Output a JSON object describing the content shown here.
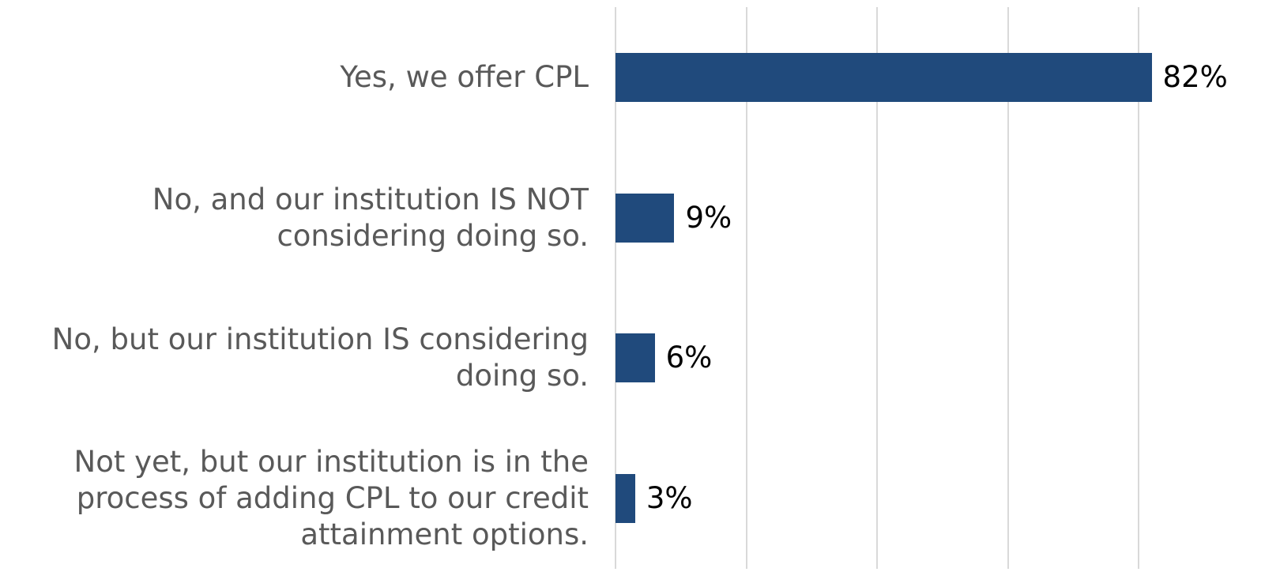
{
  "chart_data": {
    "type": "hbar",
    "categories": [
      "Yes, we offer CPL",
      "No, and our institution IS NOT considering doing so.",
      "No, but our institution IS considering doing so.",
      "Not yet, but our institution is in the process of adding CPL to our credit attainment options."
    ],
    "values": [
      82,
      9,
      6,
      3
    ],
    "value_labels": [
      "82%",
      "9%",
      "6%",
      "3%"
    ],
    "color": "#204a7c",
    "xlim": [
      0,
      80
    ],
    "xticks": [
      0,
      20,
      40,
      60,
      80
    ],
    "grid": true
  }
}
